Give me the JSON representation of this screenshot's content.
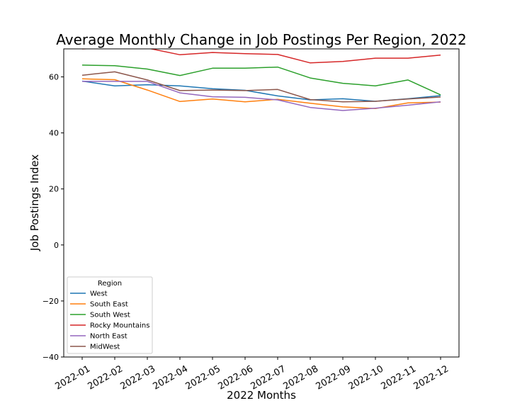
{
  "chart_data": {
    "type": "line",
    "title": "Average Monthly Change in Job Postings Per Region, 2022",
    "xlabel": "2022 Months",
    "ylabel": "Job Postings Index",
    "ylim": [
      -40,
      70
    ],
    "yticks": [
      -40,
      -20,
      0,
      20,
      40,
      60
    ],
    "grid": false,
    "legend_title": "Region",
    "legend_position": "lower-left",
    "categories": [
      "2022-01",
      "2022-02",
      "2022-03",
      "2022-04",
      "2022-05",
      "2022-06",
      "2022-07",
      "2022-08",
      "2022-09",
      "2022-10",
      "2022-11",
      "2022-12"
    ],
    "series": [
      {
        "name": "West",
        "color": "#1f77b4",
        "values": [
          58.5,
          56.8,
          57.2,
          56.8,
          55.8,
          55.2,
          53.2,
          51.8,
          52.2,
          51.3,
          52.2,
          53.3
        ]
      },
      {
        "name": "South East",
        "color": "#ff7f0e",
        "values": [
          59.3,
          59.0,
          55.3,
          51.2,
          52.1,
          51.1,
          52.0,
          50.6,
          49.3,
          48.7,
          50.7,
          51.0
        ]
      },
      {
        "name": "South West",
        "color": "#2ca02c",
        "values": [
          64.2,
          64.0,
          62.8,
          60.5,
          63.1,
          63.1,
          63.5,
          59.6,
          57.7,
          56.8,
          58.9,
          53.6
        ]
      },
      {
        "name": "Rocky Mountains",
        "color": "#d62728",
        "values": [
          70.0,
          70.5,
          70.3,
          67.9,
          68.7,
          68.3,
          68.0,
          65.0,
          65.5,
          66.7,
          66.7,
          67.8
        ]
      },
      {
        "name": "North East",
        "color": "#9467bd",
        "values": [
          58.4,
          58.4,
          58.4,
          54.3,
          52.9,
          52.7,
          51.8,
          49.1,
          48.0,
          48.8,
          49.9,
          51.1
        ]
      },
      {
        "name": "MidWest",
        "color": "#8c564b",
        "values": [
          60.6,
          61.8,
          58.9,
          55.1,
          55.3,
          55.1,
          55.5,
          51.9,
          51.1,
          51.3,
          52.1,
          52.8
        ]
      }
    ]
  }
}
